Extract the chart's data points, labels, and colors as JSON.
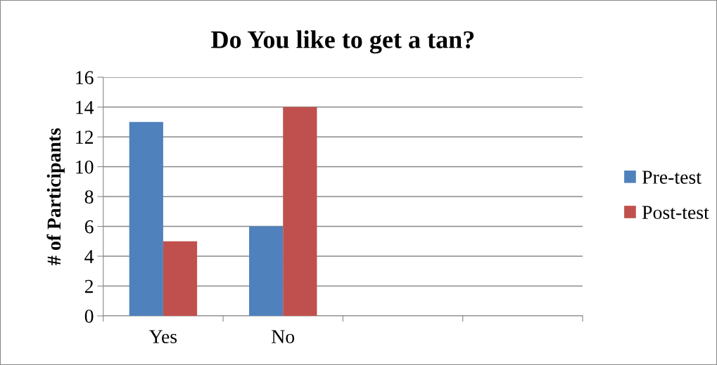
{
  "chart_data": {
    "type": "bar",
    "title": "Do You like to get a tan?",
    "ylabel": "# of Participants",
    "categories": [
      "Yes",
      "No",
      null,
      null
    ],
    "series": [
      {
        "name": "Pre-test",
        "color": "#4f81bd",
        "values": [
          13,
          6,
          null,
          null
        ]
      },
      {
        "name": "Post-test",
        "color": "#c0504d",
        "values": [
          5,
          14,
          null,
          null
        ]
      }
    ],
    "ylim": [
      0,
      16
    ],
    "yticks": [
      0,
      2,
      4,
      6,
      8,
      10,
      12,
      14,
      16
    ],
    "grid": "y",
    "legend": "right"
  }
}
